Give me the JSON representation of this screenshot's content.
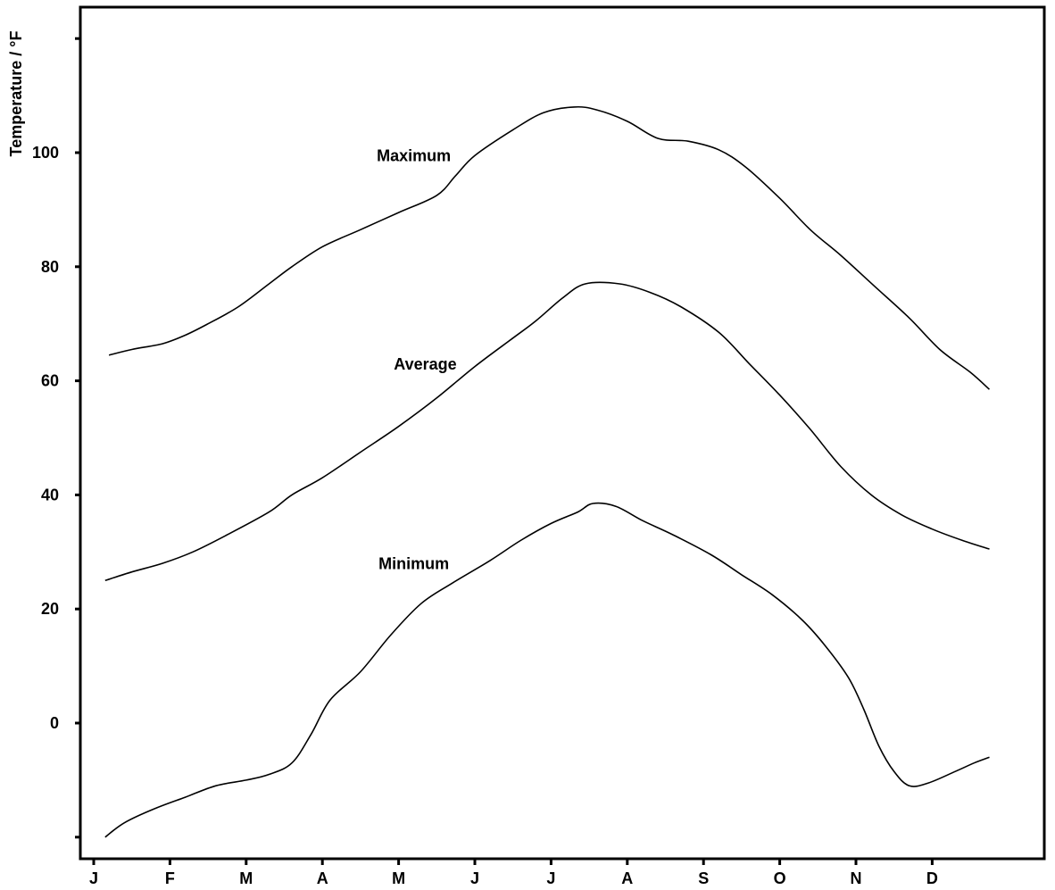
{
  "chart_data": {
    "type": "line",
    "title": "",
    "xlabel": "",
    "ylabel": "Temperature / °F",
    "x_ticks": [
      "J",
      "F",
      "M",
      "A",
      "M",
      "J",
      "J",
      "A",
      "S",
      "O",
      "N",
      "D"
    ],
    "y_ticks": [
      "0",
      "20",
      "40",
      "60",
      "80",
      "100"
    ],
    "ylim": [
      -20,
      120
    ],
    "grid": false,
    "legend": "none (series labelled inline)",
    "series": [
      {
        "name": "Maximum",
        "label_anchor": {
          "month": 4.2,
          "value": 98.5
        },
        "points": [
          [
            0.2,
            64.5
          ],
          [
            0.5,
            65.5
          ],
          [
            0.9,
            66.5
          ],
          [
            1.2,
            68
          ],
          [
            1.5,
            70
          ],
          [
            1.9,
            73
          ],
          [
            2.3,
            77
          ],
          [
            2.6,
            80
          ],
          [
            3.0,
            83.5
          ],
          [
            3.5,
            86.5
          ],
          [
            4.0,
            89.5
          ],
          [
            4.5,
            92.5
          ],
          [
            4.75,
            96
          ],
          [
            5.0,
            99.5
          ],
          [
            5.5,
            104
          ],
          [
            5.9,
            107
          ],
          [
            6.3,
            108
          ],
          [
            6.6,
            107.5
          ],
          [
            7.0,
            105.5
          ],
          [
            7.4,
            102.5
          ],
          [
            7.8,
            102
          ],
          [
            8.2,
            100.5
          ],
          [
            8.55,
            97.5
          ],
          [
            9.0,
            92
          ],
          [
            9.4,
            86.5
          ],
          [
            9.8,
            82
          ],
          [
            10.25,
            76.5
          ],
          [
            10.7,
            71
          ],
          [
            11.1,
            65.5
          ],
          [
            11.5,
            61.5
          ],
          [
            11.75,
            58.5
          ]
        ]
      },
      {
        "name": "Average",
        "label_anchor": {
          "month": 4.35,
          "value": 62
        },
        "points": [
          [
            0.15,
            25
          ],
          [
            0.5,
            26.5
          ],
          [
            0.9,
            28
          ],
          [
            1.3,
            30
          ],
          [
            1.75,
            33
          ],
          [
            2.3,
            37
          ],
          [
            2.6,
            40
          ],
          [
            3.0,
            43
          ],
          [
            3.5,
            47.5
          ],
          [
            4.0,
            52
          ],
          [
            4.5,
            57
          ],
          [
            5.0,
            62.5
          ],
          [
            5.5,
            67.5
          ],
          [
            5.8,
            70.5
          ],
          [
            6.15,
            74.5
          ],
          [
            6.45,
            77
          ],
          [
            6.9,
            77
          ],
          [
            7.3,
            75.5
          ],
          [
            7.7,
            73
          ],
          [
            8.2,
            68.5
          ],
          [
            8.6,
            63
          ],
          [
            9.0,
            57.5
          ],
          [
            9.4,
            51.5
          ],
          [
            9.8,
            45
          ],
          [
            10.2,
            40
          ],
          [
            10.6,
            36.5
          ],
          [
            11.0,
            34
          ],
          [
            11.4,
            32
          ],
          [
            11.75,
            30.5
          ]
        ]
      },
      {
        "name": "Minimum",
        "label_anchor": {
          "month": 4.2,
          "value": 27
        },
        "points": [
          [
            0.15,
            -20
          ],
          [
            0.4,
            -17.5
          ],
          [
            0.8,
            -15
          ],
          [
            1.2,
            -13
          ],
          [
            1.6,
            -11
          ],
          [
            2.0,
            -10
          ],
          [
            2.3,
            -9
          ],
          [
            2.6,
            -7
          ],
          [
            2.85,
            -2
          ],
          [
            3.1,
            4
          ],
          [
            3.5,
            9
          ],
          [
            3.9,
            15.5
          ],
          [
            4.3,
            21
          ],
          [
            4.7,
            24.5
          ],
          [
            5.2,
            28.5
          ],
          [
            5.6,
            32
          ],
          [
            6.0,
            35
          ],
          [
            6.35,
            37
          ],
          [
            6.55,
            38.5
          ],
          [
            6.85,
            38
          ],
          [
            7.2,
            35.5
          ],
          [
            7.6,
            33
          ],
          [
            8.1,
            29.5
          ],
          [
            8.5,
            26
          ],
          [
            8.9,
            22.5
          ],
          [
            9.3,
            18
          ],
          [
            9.6,
            13.5
          ],
          [
            9.9,
            8
          ],
          [
            10.1,
            2.5
          ],
          [
            10.3,
            -4
          ],
          [
            10.5,
            -8.5
          ],
          [
            10.7,
            -11
          ],
          [
            10.95,
            -10.5
          ],
          [
            11.3,
            -8.5
          ],
          [
            11.55,
            -7
          ],
          [
            11.75,
            -6
          ]
        ]
      }
    ]
  }
}
